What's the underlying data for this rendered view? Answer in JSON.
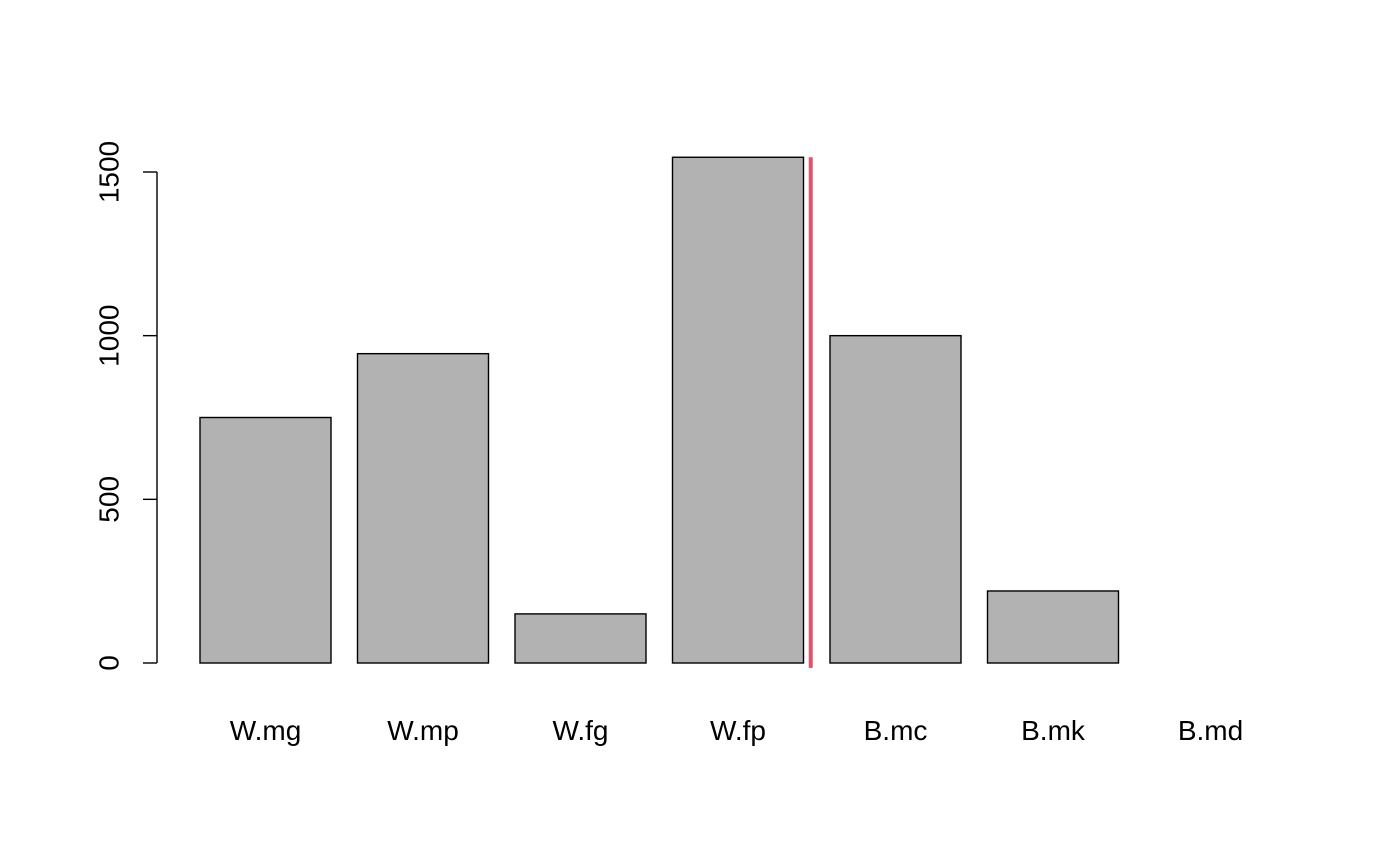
{
  "chart_data": {
    "type": "bar",
    "title": "",
    "xlabel": "",
    "ylabel": "",
    "categories": [
      "W.mg",
      "W.mp",
      "W.fg",
      "W.fp",
      "B.mc",
      "B.mk",
      "B.md"
    ],
    "values": [
      750,
      945,
      150,
      1545,
      1000,
      220,
      0
    ],
    "ylim": [
      0,
      1600
    ],
    "yticks": [
      0,
      500,
      1000,
      1500
    ],
    "ytick_labels": [
      "0",
      "500",
      "1000",
      "1500"
    ],
    "grid": false,
    "legend": "none",
    "bar_color": "#b2b2b2",
    "bar_border_color": "#000000",
    "divider": {
      "after_category": "W.fp",
      "color": "#df536b",
      "from_value": -15,
      "to_value": 1545
    }
  }
}
